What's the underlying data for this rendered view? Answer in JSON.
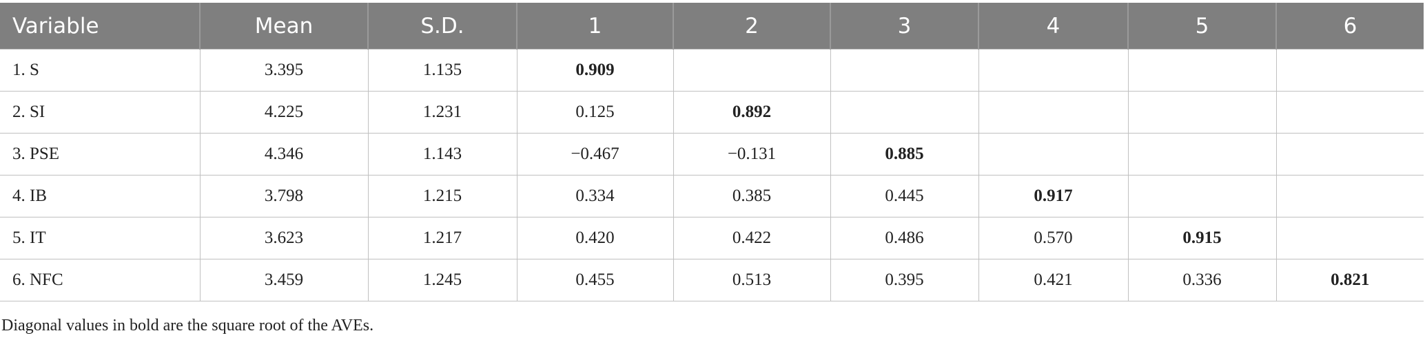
{
  "table": {
    "header": [
      "Variable",
      "Mean",
      "S.D.",
      "1",
      "2",
      "3",
      "4",
      "5",
      "6"
    ],
    "rows": [
      [
        "1. S",
        "3.395",
        "1.135",
        "0.909",
        null,
        null,
        null,
        null,
        null
      ],
      [
        "2. SI",
        "4.225",
        "1.231",
        "0.125",
        "0.892",
        null,
        null,
        null,
        null
      ],
      [
        "3. PSE",
        "4.346",
        "1.143",
        "−0.467",
        "−0.131",
        "0.885",
        null,
        null,
        null
      ],
      [
        "4. IB",
        "3.798",
        "1.215",
        "0.334",
        "0.385",
        "0.445",
        "0.917",
        null,
        null
      ],
      [
        "5. IT",
        "3.623",
        "1.217",
        "0.420",
        "0.422",
        "0.486",
        "0.570",
        "0.915",
        null
      ],
      [
        "6. NFC",
        "3.459",
        "1.245",
        "0.455",
        "0.513",
        "0.395",
        "0.421",
        "0.336",
        "0.821"
      ]
    ]
  },
  "footnote": "Diagonal values in bold are the square root of the AVEs."
}
